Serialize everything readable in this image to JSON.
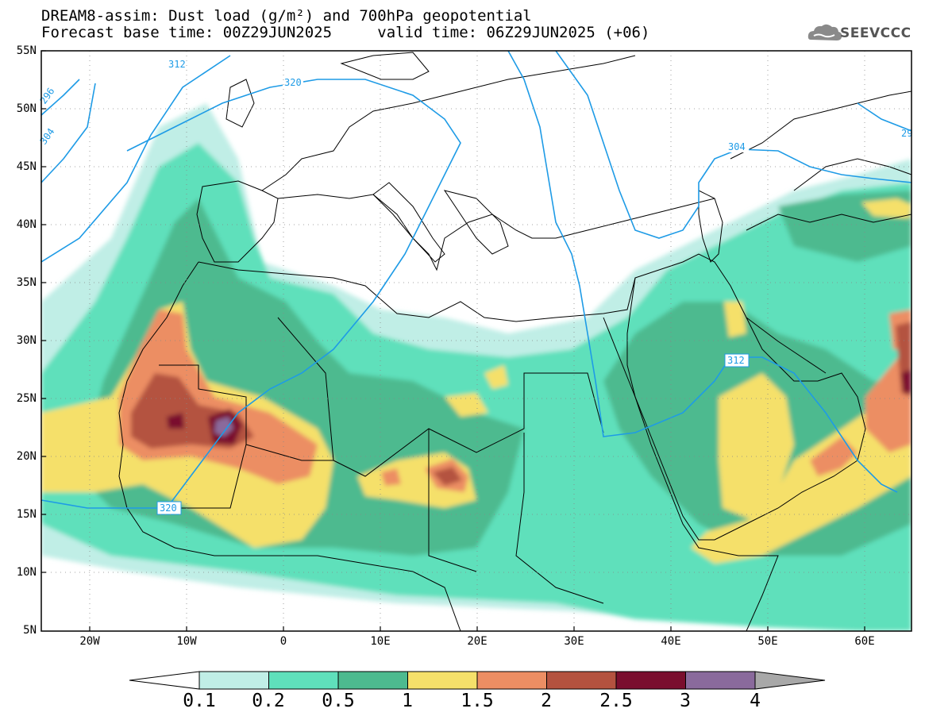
{
  "title": {
    "line1": "DREAM8-assim: Dust load (g/m²) and 700hPa geopotential",
    "line2_left": "Forecast base time: 00Z29JUN2025",
    "line2_right": "valid time: 06Z29JUN2025 (+06)"
  },
  "logo": {
    "text": "SEEVCCC",
    "icon": "cloud-icon"
  },
  "axes": {
    "lat_labels": [
      "55N",
      "50N",
      "45N",
      "40N",
      "35N",
      "30N",
      "25N",
      "20N",
      "15N",
      "10N",
      "5N"
    ],
    "lon_labels": [
      "20W",
      "10W",
      "0",
      "10E",
      "20E",
      "30E",
      "40E",
      "50E",
      "60E"
    ],
    "lon_range": [
      -25,
      65
    ],
    "lat_range": [
      5,
      55
    ]
  },
  "contour_labels": [
    "312",
    "320",
    "296",
    "304",
    "304",
    "312",
    "320",
    "29"
  ],
  "colorbar": {
    "ticks": [
      "0.1",
      "0.2",
      "0.5",
      "1",
      "1.5",
      "2",
      "2.5",
      "3",
      "4"
    ],
    "colors": [
      "#c0eee6",
      "#5fe0bb",
      "#4dba8f",
      "#f5e06a",
      "#ec8e63",
      "#b4523f",
      "#7a0e2e",
      "#8a6a9c",
      "#a8a8a8"
    ]
  },
  "colors": {
    "land_border": "#000000",
    "geopotential_line": "#1e9be6",
    "water_bg": "#ffffff"
  }
}
